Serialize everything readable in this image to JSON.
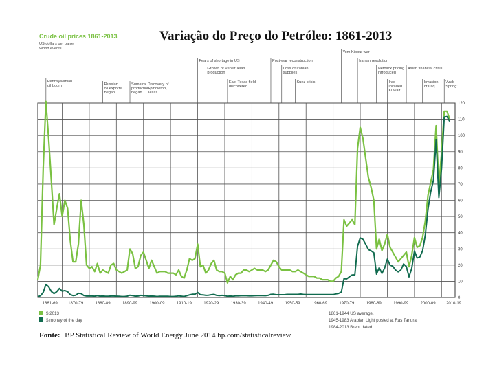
{
  "slide_title": "Variação do Preço do Petróleo: 1861-2013",
  "source_label": "Fonte:",
  "source_text": "BP Statistical Review of World Energy June 2014 bp.com/statisticalreview",
  "chart_data": {
    "type": "line",
    "title": "Crude oil prices 1861-2013",
    "subtitle_lines": [
      "US dollars per barrel",
      "World events"
    ],
    "xlabel": "",
    "ylabel": "US dollars per barrel",
    "xlim": [
      1861,
      2015
    ],
    "ylim": [
      0,
      120
    ],
    "x_tick_labels": [
      "1861-69",
      "1870-79",
      "1880-89",
      "1890-99",
      "1900-09",
      "1910-19",
      "1920-29",
      "1930-39",
      "1940-49",
      "1950-59",
      "1960-69",
      "1970-79",
      "1980-89",
      "1990-99",
      "2000-09",
      "2010-19"
    ],
    "y_ticks": [
      0,
      10,
      20,
      30,
      40,
      50,
      60,
      70,
      80,
      90,
      100,
      110,
      120
    ],
    "colors": {
      "real": "#7ac142",
      "nominal": "#116b4f",
      "grid": "#555555"
    },
    "legend": [
      "$ 2013",
      "$ money of the day"
    ],
    "notes": [
      "1861-1944 US average.",
      "1945-1983 Arabian Light posted at Ras Tanura.",
      "1984-2013 Brent dated."
    ],
    "series": [
      {
        "name": "$ 2013",
        "x": [
          1861,
          1862,
          1863,
          1864,
          1865,
          1866,
          1867,
          1868,
          1869,
          1870,
          1871,
          1872,
          1873,
          1874,
          1875,
          1876,
          1877,
          1878,
          1879,
          1880,
          1881,
          1882,
          1883,
          1884,
          1885,
          1886,
          1887,
          1888,
          1889,
          1890,
          1891,
          1892,
          1893,
          1894,
          1895,
          1896,
          1897,
          1898,
          1899,
          1900,
          1901,
          1902,
          1903,
          1904,
          1905,
          1906,
          1907,
          1908,
          1909,
          1910,
          1911,
          1912,
          1913,
          1914,
          1915,
          1916,
          1917,
          1918,
          1919,
          1920,
          1921,
          1922,
          1923,
          1924,
          1925,
          1926,
          1927,
          1928,
          1929,
          1930,
          1931,
          1932,
          1933,
          1934,
          1935,
          1936,
          1937,
          1938,
          1939,
          1940,
          1941,
          1942,
          1943,
          1944,
          1945,
          1946,
          1947,
          1948,
          1949,
          1950,
          1951,
          1952,
          1953,
          1954,
          1955,
          1956,
          1957,
          1958,
          1959,
          1960,
          1961,
          1962,
          1963,
          1964,
          1965,
          1966,
          1967,
          1968,
          1969,
          1970,
          1971,
          1972,
          1973,
          1974,
          1975,
          1976,
          1977,
          1978,
          1979,
          1980,
          1981,
          1982,
          1983,
          1984,
          1985,
          1986,
          1987,
          1988,
          1989,
          1990,
          1991,
          1992,
          1993,
          1994,
          1995,
          1996,
          1997,
          1998,
          1999,
          2000,
          2001,
          2002,
          2003,
          2004,
          2005,
          2006,
          2007,
          2008,
          2009,
          2010,
          2011,
          2012,
          2013
        ],
        "values": [
          11,
          20,
          80,
          121,
          98,
          72,
          45,
          55,
          64,
          50,
          60,
          55,
          35,
          22,
          22,
          33,
          60,
          45,
          20,
          18,
          19,
          16,
          21,
          15,
          17,
          16,
          15,
          20,
          21,
          17,
          16,
          15,
          16,
          17,
          30,
          27,
          18,
          19,
          26,
          28,
          23,
          18,
          23,
          19,
          15,
          16,
          16,
          16,
          15,
          15,
          15,
          14,
          17,
          13,
          12,
          17,
          24,
          23,
          24,
          33,
          19,
          20,
          15,
          17,
          21,
          23,
          17,
          16,
          16,
          15,
          9,
          13,
          11,
          14,
          15,
          15,
          17,
          17,
          16,
          17,
          18,
          17,
          17,
          17,
          16,
          17,
          20,
          23,
          22,
          19,
          17,
          17,
          17,
          17,
          16,
          16,
          17,
          16,
          15,
          14,
          13,
          13,
          13,
          12,
          12,
          11,
          11,
          11,
          10,
          10,
          12,
          13,
          16,
          48,
          44,
          46,
          48,
          45,
          92,
          105,
          98,
          86,
          74,
          68,
          60,
          30,
          36,
          29,
          33,
          39,
          31,
          28,
          25,
          22,
          24,
          26,
          28,
          19,
          26,
          37,
          31,
          32,
          37,
          47,
          63,
          71,
          79,
          106,
          69,
          89,
          115,
          115,
          110
        ]
      },
      {
        "name": "$ money of the day",
        "x": [
          1861,
          1862,
          1863,
          1864,
          1865,
          1866,
          1867,
          1868,
          1869,
          1870,
          1871,
          1872,
          1873,
          1874,
          1875,
          1876,
          1877,
          1878,
          1879,
          1880,
          1881,
          1882,
          1883,
          1884,
          1885,
          1886,
          1887,
          1888,
          1889,
          1890,
          1891,
          1892,
          1893,
          1894,
          1895,
          1896,
          1897,
          1898,
          1899,
          1900,
          1901,
          1902,
          1903,
          1904,
          1905,
          1906,
          1907,
          1908,
          1909,
          1910,
          1911,
          1912,
          1913,
          1914,
          1915,
          1916,
          1917,
          1918,
          1919,
          1920,
          1921,
          1922,
          1923,
          1924,
          1925,
          1926,
          1927,
          1928,
          1929,
          1930,
          1931,
          1932,
          1933,
          1934,
          1935,
          1936,
          1937,
          1938,
          1939,
          1940,
          1941,
          1942,
          1943,
          1944,
          1945,
          1946,
          1947,
          1948,
          1949,
          1950,
          1951,
          1952,
          1953,
          1954,
          1955,
          1956,
          1957,
          1958,
          1959,
          1960,
          1961,
          1962,
          1963,
          1964,
          1965,
          1966,
          1967,
          1968,
          1969,
          1970,
          1971,
          1972,
          1973,
          1974,
          1975,
          1976,
          1977,
          1978,
          1979,
          1980,
          1981,
          1982,
          1983,
          1984,
          1985,
          1986,
          1987,
          1988,
          1989,
          1990,
          1991,
          1992,
          1993,
          1994,
          1995,
          1996,
          1997,
          1998,
          1999,
          2000,
          2001,
          2002,
          2003,
          2004,
          2005,
          2006,
          2007,
          2008,
          2009,
          2010,
          2011,
          2012,
          2013
        ],
        "values": [
          0.5,
          1,
          3.2,
          8.1,
          6.6,
          3.7,
          2.4,
          3.6,
          5.6,
          3.9,
          4.3,
          3.6,
          1.8,
          1.2,
          1.4,
          2.6,
          2.4,
          1.2,
          0.9,
          0.9,
          0.9,
          0.8,
          1.1,
          0.8,
          0.9,
          0.7,
          0.7,
          0.9,
          0.9,
          0.8,
          0.7,
          0.6,
          0.6,
          0.8,
          1.4,
          1.2,
          0.8,
          0.9,
          1.3,
          1.2,
          1,
          0.8,
          0.9,
          0.8,
          0.6,
          0.7,
          0.7,
          0.7,
          0.7,
          0.6,
          0.6,
          0.7,
          1,
          0.8,
          0.6,
          1.1,
          1.6,
          2,
          2,
          3.1,
          1.7,
          1.6,
          1.3,
          1.4,
          1.7,
          1.9,
          1.3,
          1.2,
          1.3,
          1.2,
          0.7,
          0.9,
          0.7,
          1,
          1,
          1.1,
          1.2,
          1.1,
          1,
          1,
          1.1,
          1.2,
          1.2,
          1.2,
          1.1,
          1.3,
          1.9,
          2,
          1.7,
          1.7,
          1.7,
          1.7,
          1.9,
          1.9,
          1.9,
          1.9,
          1.9,
          2.1,
          1.9,
          1.8,
          1.8,
          1.8,
          1.8,
          1.8,
          1.8,
          1.8,
          1.8,
          1.8,
          1.8,
          1.8,
          2.2,
          2.5,
          3.3,
          11.6,
          11.5,
          12.8,
          13.9,
          14,
          31.6,
          36.8,
          35.9,
          32.9,
          29.6,
          28.8,
          27.6,
          14.4,
          18.4,
          14.9,
          18.2,
          23.7,
          20,
          19.3,
          17,
          15.8,
          17,
          20.7,
          19.1,
          12.7,
          17.9,
          28.7,
          24.4,
          25,
          28.8,
          38.3,
          54.5,
          65.1,
          72.4,
          97.3,
          61.7,
          79.5,
          111.3,
          111.7,
          108.7
        ]
      }
    ],
    "events": [
      "Pennsylvanian oil boom",
      "Russian oil exports began",
      "Sumatra production began",
      "Discovery of Spindletop, Texas",
      "Fears of shortage in US",
      "Growth of Venezuelan production",
      "East Texas field discovered",
      "Post-war reconstruction",
      "Loss of Iranian supplies",
      "Suez crisis",
      "Yom Kippur war",
      "Iranian revolution",
      "Netback pricing introduced",
      "Iraq invaded Kuwait",
      "Asian financial crisis",
      "Invasion of Iraq",
      "'Arab Spring'"
    ]
  }
}
